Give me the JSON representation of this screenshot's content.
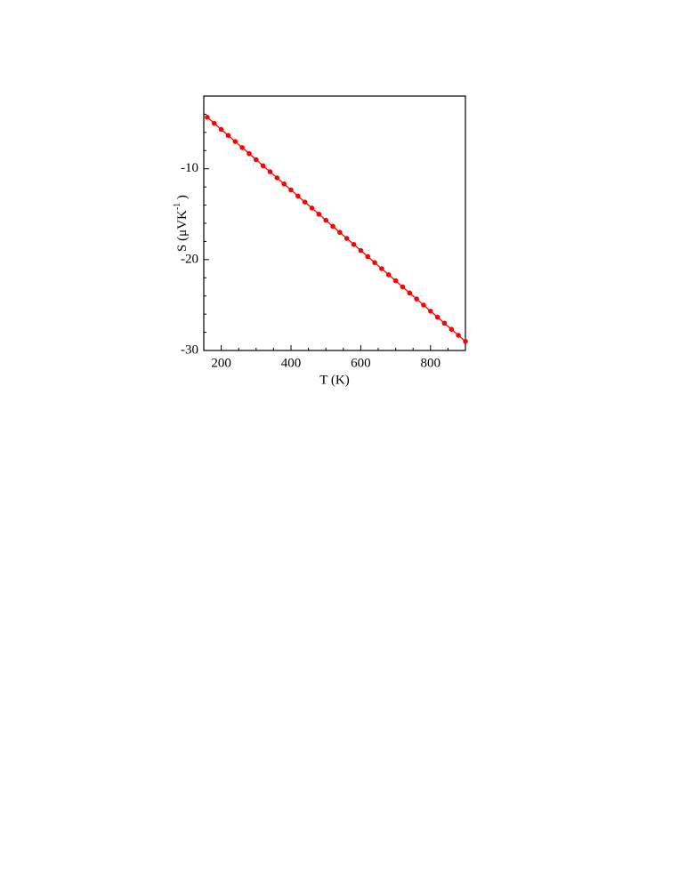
{
  "chart_data": {
    "type": "line",
    "x_label": "T (K)",
    "y_label": {
      "main": "S (μVK",
      "sup": "-1",
      "end": " )"
    },
    "x": [
      160,
      180,
      200,
      220,
      240,
      260,
      280,
      300,
      320,
      340,
      360,
      380,
      400,
      420,
      440,
      460,
      480,
      500,
      520,
      540,
      560,
      580,
      600,
      620,
      640,
      660,
      680,
      700,
      720,
      740,
      760,
      780,
      800,
      820,
      840,
      860,
      880,
      900
    ],
    "series": [
      {
        "color": "#ff0000",
        "values": [
          -4.33,
          -5.0,
          -5.67,
          -6.33,
          -7.0,
          -7.67,
          -8.33,
          -9.0,
          -9.67,
          -10.33,
          -11.0,
          -11.67,
          -12.33,
          -13.0,
          -13.67,
          -14.33,
          -15.0,
          -15.67,
          -16.33,
          -17.0,
          -17.67,
          -18.33,
          -19.0,
          -19.67,
          -20.33,
          -21.0,
          -21.67,
          -22.33,
          -23.0,
          -23.67,
          -24.33,
          -25.0,
          -25.67,
          -26.33,
          -27.0,
          -27.67,
          -28.33,
          -29.0
        ]
      }
    ],
    "xlim": [
      150,
      900
    ],
    "ylim": [
      -30,
      -2
    ],
    "xticks": [
      200,
      400,
      600,
      800
    ],
    "yticks": [
      -30,
      -20,
      -10
    ],
    "xminorticks": [
      150,
      250,
      300,
      350,
      450,
      500,
      550,
      650,
      700,
      750,
      850,
      900
    ],
    "yminorticks": [
      -28,
      -26,
      -24,
      -22,
      -18,
      -16,
      -14,
      -12,
      -8,
      -6,
      -4
    ],
    "grid": false
  }
}
